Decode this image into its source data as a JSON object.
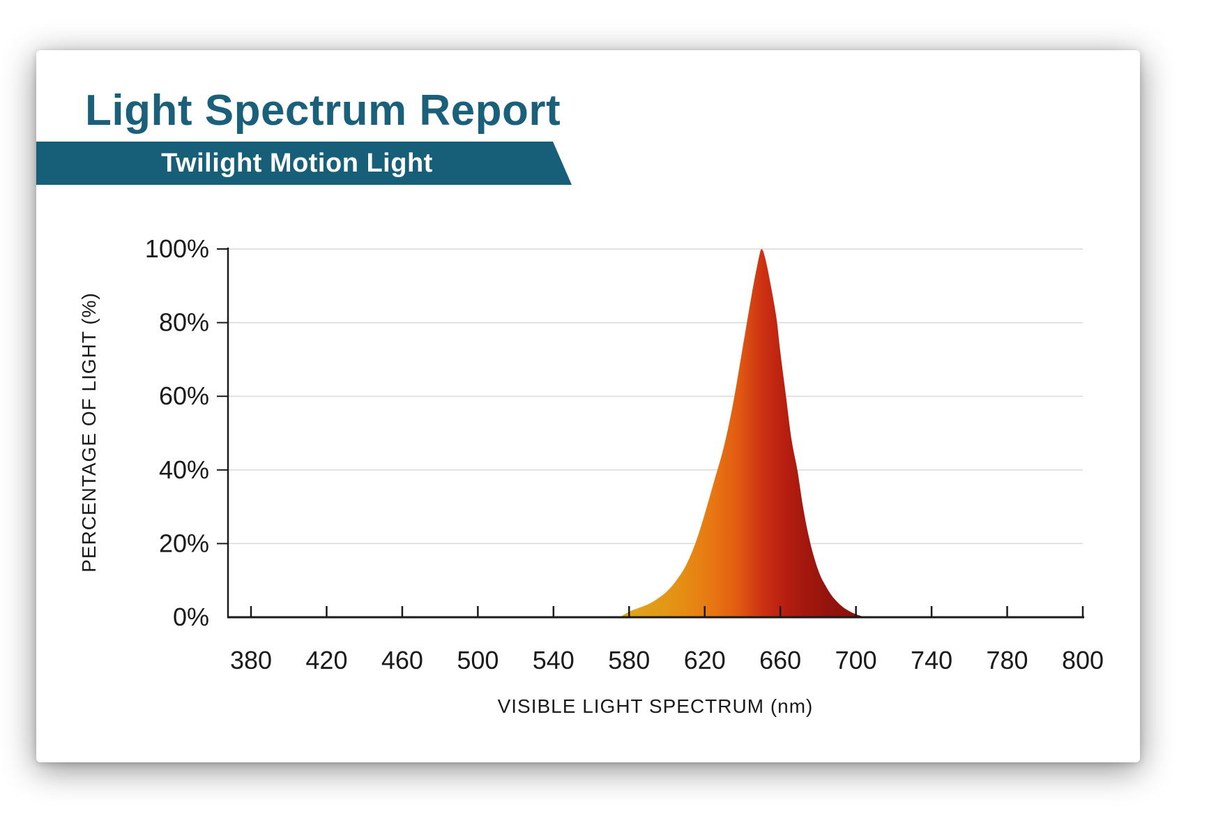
{
  "header": {
    "title": "Light Spectrum Report",
    "product_name": "Twilight Motion Light"
  },
  "colors": {
    "title": "#1a607b",
    "banner_bg": "#175e78",
    "banner_text": "#ffffff",
    "axis": "#1a1a1a",
    "gridline": "#d9d9d9",
    "card_bg": "#ffffff"
  },
  "chart_data": {
    "type": "area",
    "title": "",
    "xlabel": "VISIBLE LIGHT SPECTRUM (nm)",
    "ylabel": "PERCENTAGE OF LIGHT (%)",
    "x_axis_type": "category",
    "x_tick_labels": [
      "380",
      "420",
      "460",
      "500",
      "540",
      "580",
      "620",
      "660",
      "700",
      "740",
      "780",
      "800"
    ],
    "y_tick_labels": [
      "0%",
      "20%",
      "40%",
      "60%",
      "80%",
      "100%"
    ],
    "ylim": [
      0,
      100
    ],
    "grid": "horizontal",
    "legend": "none",
    "series": [
      {
        "name": "Twilight Motion Light",
        "peak_nm": 650,
        "peak_pct": 100,
        "points_nm_pct": [
          [
            575,
            0
          ],
          [
            580,
            1.5
          ],
          [
            585,
            2.5
          ],
          [
            590,
            3.5
          ],
          [
            595,
            5
          ],
          [
            600,
            7
          ],
          [
            605,
            10
          ],
          [
            610,
            14
          ],
          [
            615,
            20
          ],
          [
            620,
            28
          ],
          [
            625,
            37
          ],
          [
            630,
            46
          ],
          [
            635,
            58
          ],
          [
            640,
            73
          ],
          [
            645,
            88
          ],
          [
            648,
            96
          ],
          [
            650,
            100
          ],
          [
            652,
            97.5
          ],
          [
            655,
            90
          ],
          [
            658,
            81
          ],
          [
            660,
            72
          ],
          [
            663,
            60
          ],
          [
            666,
            48
          ],
          [
            669,
            40
          ],
          [
            672,
            30
          ],
          [
            675,
            22
          ],
          [
            678,
            16
          ],
          [
            681,
            11.5
          ],
          [
            684,
            8.5
          ],
          [
            687,
            6
          ],
          [
            690,
            4.2
          ],
          [
            693,
            2.8
          ],
          [
            696,
            1.8
          ],
          [
            700,
            0.8
          ],
          [
            705,
            0
          ]
        ]
      }
    ],
    "fill_gradient_stops_nm_color": [
      [
        575,
        "#dca91f"
      ],
      [
        605,
        "#e59214"
      ],
      [
        625,
        "#e87512"
      ],
      [
        638,
        "#e05a12"
      ],
      [
        650,
        "#ce3312"
      ],
      [
        662,
        "#b81f10"
      ],
      [
        672,
        "#a5180f"
      ],
      [
        685,
        "#94140d"
      ],
      [
        705,
        "#85110c"
      ]
    ]
  }
}
